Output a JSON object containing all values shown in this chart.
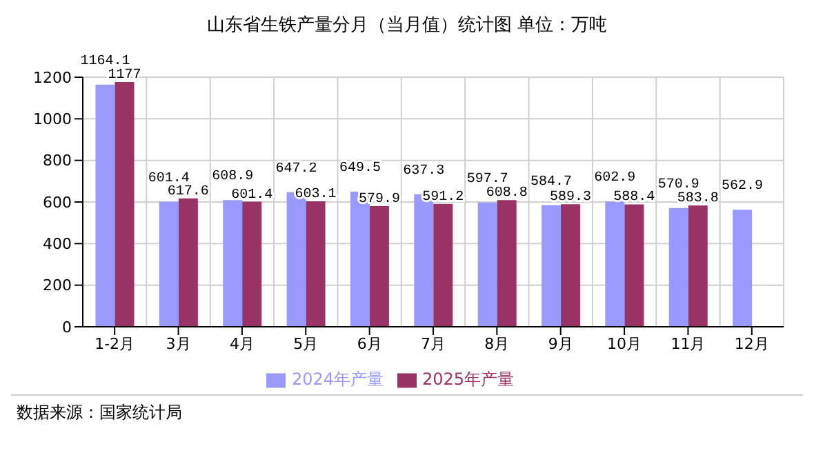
{
  "chart_data": {
    "type": "bar",
    "title": "山东省生铁产量分月（当月值）统计图 单位：万吨",
    "categories": [
      "1-2月",
      "3月",
      "4月",
      "5月",
      "6月",
      "7月",
      "8月",
      "9月",
      "10月",
      "11月",
      "12月"
    ],
    "series": [
      {
        "name": "2024年产量",
        "color": "#9999ff",
        "values": [
          1164.1,
          601.4,
          608.9,
          647.2,
          649.5,
          637.3,
          597.7,
          584.7,
          602.9,
          570.9,
          562.9
        ]
      },
      {
        "name": "2025年产量",
        "color": "#993366",
        "values": [
          1177,
          617.6,
          601.4,
          603.1,
          579.9,
          591.2,
          608.8,
          589.3,
          588.4,
          583.8,
          null
        ]
      }
    ],
    "ylim": [
      0,
      1200
    ],
    "yticks": [
      0,
      200,
      400,
      600,
      800,
      1000,
      1200
    ],
    "grid": true,
    "legend": "bottom",
    "data_labels": true,
    "annotations": [
      "数据来源：国家统计局"
    ]
  }
}
